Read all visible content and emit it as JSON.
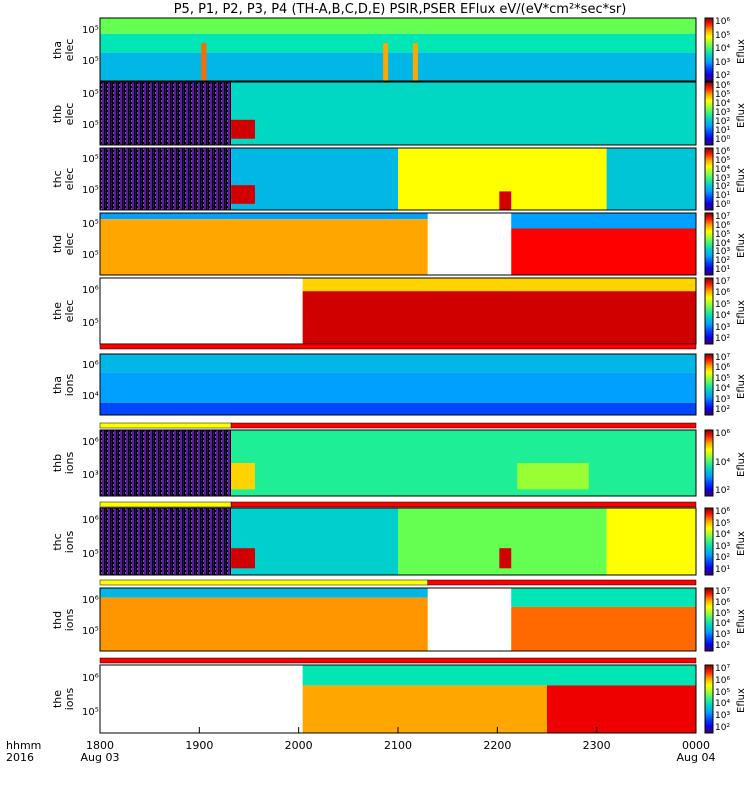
{
  "title": "P5, P1, P2, P3, P4 (TH-A,B,C,D,E) PSIR,PSER EFlux eV/(eV*cm²*sec*sr)",
  "footer": {
    "label1": "hhmm",
    "label2": "2016"
  },
  "x_ticks": [
    "1800",
    "1900",
    "2000",
    "2100",
    "2200",
    "2300",
    "0000"
  ],
  "x_dates": [
    "Aug 03",
    "Aug 04"
  ],
  "colorbar_title": "Eflux",
  "chart_data": {
    "type": "heatmap",
    "x_range": [
      "1800",
      "0000"
    ],
    "panels": [
      {
        "name": "tha elec",
        "ylabel": "tha\nelec",
        "yticks": [
          "10⁵",
          "10⁵"
        ],
        "cb_ticks": [
          "10⁶",
          "10⁵",
          "10⁴",
          "10³",
          "10²"
        ],
        "bands": [
          {
            "y": [
              0,
              0.25
            ],
            "segments": [
              [
                0,
                1,
                0.55
              ]
            ]
          },
          {
            "y": [
              0.25,
              0.55
            ],
            "segments": [
              [
                0,
                1,
                0.45
              ]
            ]
          },
          {
            "y": [
              0.55,
              1
            ],
            "segments": [
              [
                0,
                1,
                0.35
              ]
            ]
          }
        ],
        "spikes": [
          [
            0.17,
            0.85
          ],
          [
            0.475,
            0.8
          ],
          [
            0.525,
            0.8
          ]
        ]
      },
      {
        "name": "thb elec",
        "ylabel": "thb\nelec",
        "yticks": [
          "10⁵",
          "10⁵"
        ],
        "cb_ticks": [
          "10⁶",
          "10⁵",
          "10⁴",
          "10³",
          "10²",
          "10¹",
          "10⁰"
        ],
        "bands": [
          {
            "y": [
              0,
              1
            ],
            "segments": [
              [
                0,
                0.22,
                -1
              ],
              [
                0.22,
                1,
                0.42
              ]
            ]
          },
          {
            "y": [
              0.6,
              0.9
            ],
            "segments": [
              [
                0.22,
                0.26,
                0.95
              ]
            ]
          }
        ]
      },
      {
        "name": "thc elec",
        "ylabel": "thc\nelec",
        "yticks": [
          "10⁵",
          "10⁵"
        ],
        "cb_ticks": [
          "10⁶",
          "10⁵",
          "10⁴",
          "10³",
          "10²",
          "10¹",
          "10⁰"
        ],
        "bands": [
          {
            "y": [
              0,
              1
            ],
            "segments": [
              [
                0,
                0.22,
                -1
              ],
              [
                0.22,
                0.5,
                0.35
              ],
              [
                0.5,
                0.85,
                0.7
              ],
              [
                0.85,
                1,
                0.38
              ]
            ]
          },
          {
            "y": [
              0.6,
              0.9
            ],
            "segments": [
              [
                0.22,
                0.26,
                0.95
              ]
            ]
          },
          {
            "y": [
              0.7,
              1
            ],
            "segments": [
              [
                0.67,
                0.69,
                0.95
              ]
            ]
          }
        ]
      },
      {
        "name": "thd elec",
        "ylabel": "thd\nelec",
        "yticks": [
          "10⁵",
          "10⁵"
        ],
        "cb_ticks": [
          "10⁷",
          "10⁶",
          "10⁵",
          "10⁴",
          "10³",
          "10²",
          "10¹"
        ],
        "bands": [
          {
            "y": [
              0,
              0.1
            ],
            "segments": [
              [
                0,
                0.55,
                0.3
              ]
            ]
          },
          {
            "y": [
              0.1,
              1
            ],
            "segments": [
              [
                0,
                0.55,
                0.8
              ]
            ]
          },
          {
            "y": [
              0,
              1
            ],
            "segments": [
              [
                0.55,
                0.69,
                -2
              ]
            ]
          },
          {
            "y": [
              0,
              0.25
            ],
            "segments": [
              [
                0.69,
                1,
                0.3
              ]
            ]
          },
          {
            "y": [
              0.25,
              1
            ],
            "segments": [
              [
                0.69,
                1,
                0.92
              ]
            ]
          }
        ]
      },
      {
        "name": "the elec",
        "ylabel": "the\nelec",
        "yticks": [
          "10⁶",
          "10⁵"
        ],
        "cb_ticks": [
          "10⁷",
          "10⁶",
          "10⁵",
          "10⁴",
          "10³",
          "10²"
        ],
        "bands": [
          {
            "y": [
              0,
              1
            ],
            "segments": [
              [
                0,
                0.34,
                -2
              ]
            ]
          },
          {
            "y": [
              0,
              0.2
            ],
            "segments": [
              [
                0.34,
                1,
                0.75
              ]
            ]
          },
          {
            "y": [
              0.2,
              1
            ],
            "segments": [
              [
                0.34,
                1,
                0.95
              ]
            ]
          }
        ]
      },
      {
        "name": "tha ions",
        "ylabel": "tha\nions",
        "yticks": [
          "10⁶",
          "10⁴"
        ],
        "cb_ticks": [
          "10⁷",
          "10⁶",
          "10⁵",
          "10⁴",
          "10³",
          "10²"
        ],
        "bands": [
          {
            "y": [
              0,
              0.3
            ],
            "segments": [
              [
                0,
                1,
                0.35
              ]
            ]
          },
          {
            "y": [
              0.3,
              0.8
            ],
            "segments": [
              [
                0,
                1,
                0.3
              ]
            ]
          },
          {
            "y": [
              0.8,
              1
            ],
            "segments": [
              [
                0,
                1,
                0.2
              ]
            ]
          }
        ]
      },
      {
        "name": "thb ions",
        "ylabel": "thb\nions",
        "yticks": [
          "10⁶",
          "10³"
        ],
        "cb_ticks": [
          "10⁶",
          "10⁴",
          "10²"
        ],
        "bands": [
          {
            "y": [
              0,
              1
            ],
            "segments": [
              [
                0,
                0.22,
                -1
              ],
              [
                0.22,
                1,
                0.48
              ]
            ]
          },
          {
            "y": [
              0.5,
              0.9
            ],
            "segments": [
              [
                0.22,
                0.26,
                0.75
              ],
              [
                0.7,
                0.82,
                0.6
              ]
            ]
          }
        ]
      },
      {
        "name": "thc ions",
        "ylabel": "thc\nions",
        "yticks": [
          "10⁶",
          "10⁵"
        ],
        "cb_ticks": [
          "10⁶",
          "10⁵",
          "10⁴",
          "10³",
          "10²",
          "10¹"
        ],
        "bands": [
          {
            "y": [
              0,
              1
            ],
            "segments": [
              [
                0,
                0.22,
                -1
              ],
              [
                0.22,
                0.5,
                0.4
              ],
              [
                0.5,
                0.85,
                0.55
              ],
              [
                0.85,
                1,
                0.7
              ]
            ]
          },
          {
            "y": [
              0.6,
              0.9
            ],
            "segments": [
              [
                0.22,
                0.26,
                0.95
              ],
              [
                0.67,
                0.69,
                0.95
              ]
            ]
          }
        ]
      },
      {
        "name": "thd ions",
        "ylabel": "thd\nions",
        "yticks": [
          "10⁶",
          "10⁵"
        ],
        "cb_ticks": [
          "10⁷",
          "10⁶",
          "10⁵",
          "10⁴",
          "10³",
          "10²"
        ],
        "bands": [
          {
            "y": [
              0,
              0.15
            ],
            "segments": [
              [
                0,
                0.55,
                0.35
              ]
            ]
          },
          {
            "y": [
              0.15,
              1
            ],
            "segments": [
              [
                0,
                0.55,
                0.82
              ]
            ]
          },
          {
            "y": [
              0,
              1
            ],
            "segments": [
              [
                0.55,
                0.69,
                -2
              ]
            ]
          },
          {
            "y": [
              0,
              0.3
            ],
            "segments": [
              [
                0.69,
                1,
                0.45
              ]
            ]
          },
          {
            "y": [
              0.3,
              1
            ],
            "segments": [
              [
                0.69,
                1,
                0.85
              ]
            ]
          }
        ]
      },
      {
        "name": "the ions",
        "ylabel": "the\nions",
        "yticks": [
          "10⁶",
          "10⁵"
        ],
        "cb_ticks": [
          "10⁷",
          "10⁶",
          "10⁵",
          "10⁴",
          "10³",
          "10²"
        ],
        "bands": [
          {
            "y": [
              0,
              1
            ],
            "segments": [
              [
                0,
                0.34,
                -2
              ]
            ]
          },
          {
            "y": [
              0,
              0.3
            ],
            "segments": [
              [
                0.34,
                1,
                0.45
              ]
            ]
          },
          {
            "y": [
              0.3,
              1
            ],
            "segments": [
              [
                0.34,
                0.75,
                0.8
              ],
              [
                0.75,
                1,
                0.93
              ]
            ]
          }
        ]
      }
    ],
    "flag_bars": [
      {
        "colors": [
          "#ff0000"
        ]
      },
      {
        "colors": [
          "#ffff00",
          "#ff0000"
        ],
        "split": 0.22
      },
      {
        "colors": [
          "#ffff00",
          "#ff0000"
        ],
        "split": 0.22
      },
      {
        "colors": [
          "#ffff00",
          "#ff0000"
        ],
        "split": 0.55
      },
      {
        "colors": [
          "#ff0000"
        ]
      }
    ],
    "legend": "colorbar right"
  }
}
